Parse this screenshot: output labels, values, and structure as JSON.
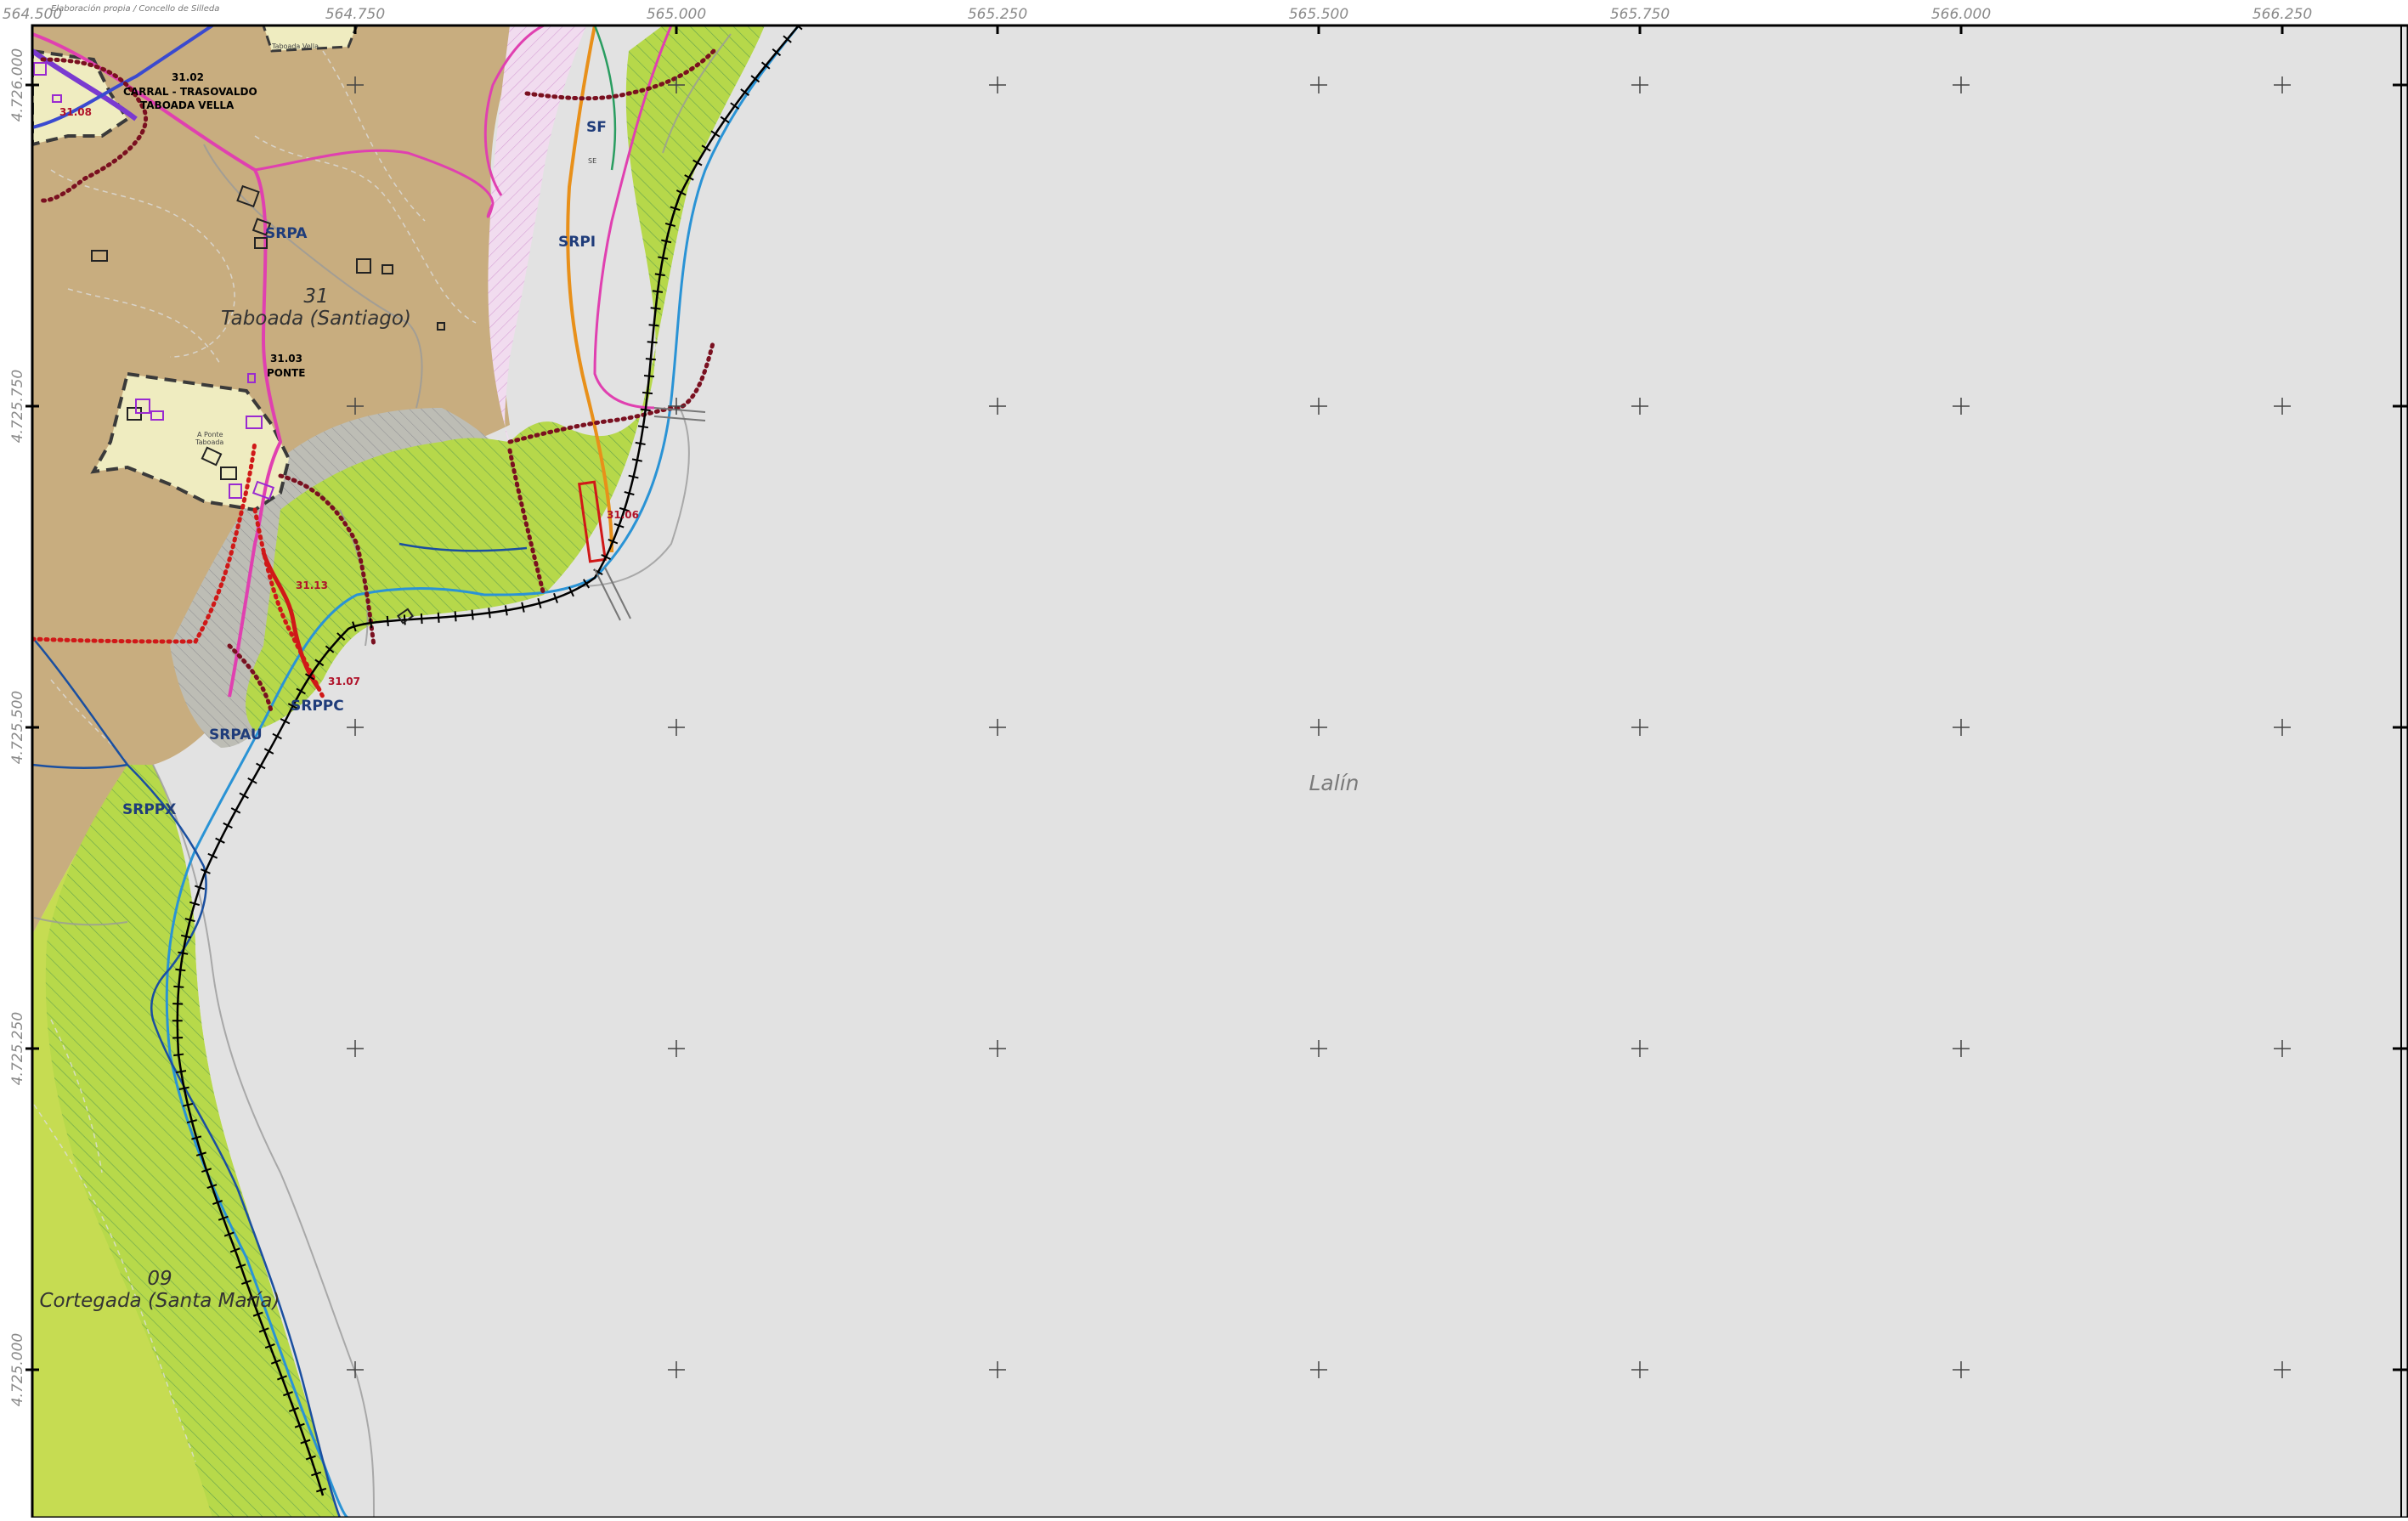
{
  "header": {
    "source_note": "Elaboración propia / Concello de Silleda"
  },
  "axes": {
    "x_ticks": [
      "564.500",
      "564.750",
      "565.000",
      "565.250",
      "565.500",
      "565.750",
      "566.000",
      "566.250"
    ],
    "y_ticks": [
      "4.726.000",
      "4.725.750",
      "4.725.500",
      "4.725.250",
      "4.725.000"
    ]
  },
  "zones": {
    "srpa": "SRPA",
    "srpi": "SRPI",
    "sf": "SF",
    "se": "SE",
    "srpau": "SRPAU",
    "srppc": "SRPPC",
    "srppx": "SRPPX"
  },
  "settlements": {
    "s3102_code": "31.02",
    "s3102_name1": "CARRAL - TRASOVALDO",
    "s3102_name2": "TABOADA VELLA",
    "s3108_code": "31.08",
    "s3103_code": "31.03",
    "s3103_name": "PONTE",
    "s3106_code": "31.06",
    "s3113_code": "31.13",
    "s3107_code": "31.07",
    "place_apontetaboada1": "A Ponte",
    "place_apontetaboada2": "Taboada",
    "place_taboadavella": "Taboada Vella"
  },
  "parishes": {
    "p31_num": "31",
    "p31_name": "Taboada (Santiago)",
    "p09_num": "09",
    "p09_name": "Cortegada (Santa María)"
  },
  "municipality": {
    "neighbor": "Lalín"
  },
  "colors": {
    "basin_gray": "#e2e2e2",
    "rural_brown": "#c8ad7f",
    "forest_green": "#c6dc52",
    "hatched_green": "#b6d84a",
    "settlement_fill": "#efecc0",
    "river_blue": "#2a93d5",
    "road_magenta": "#e040b0",
    "boundary_red": "#d01818",
    "boundary_dotted": "#7a1020",
    "purple_line": "#7a3ad0",
    "orange_line": "#e8901a"
  }
}
